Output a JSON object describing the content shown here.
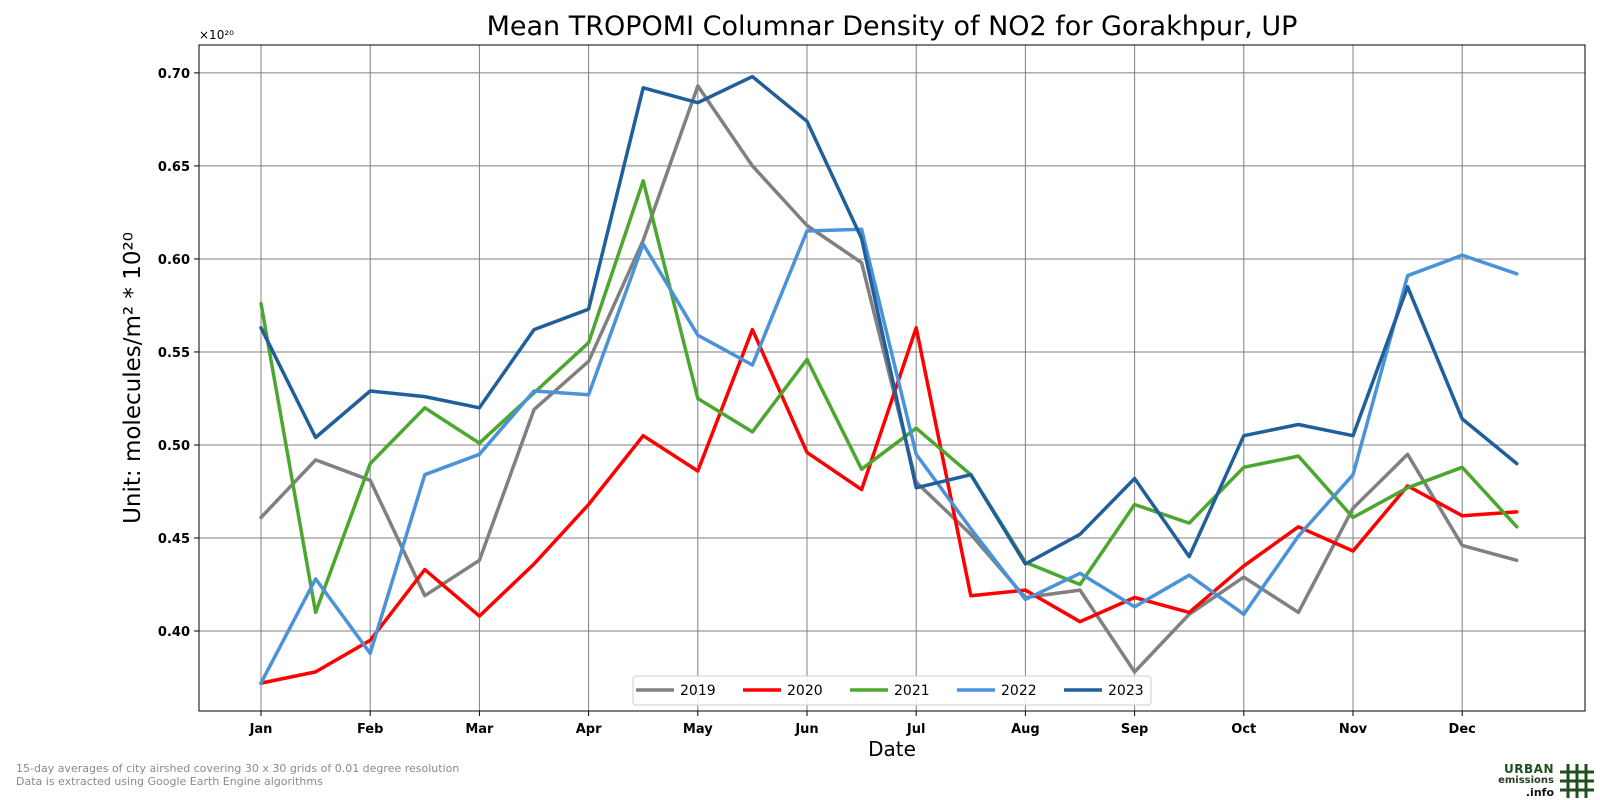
{
  "chart_data": {
    "type": "line",
    "title": "Mean TROPOMI Columnar Density of NO2 for Gorakhpur, UP",
    "xlabel": "Date",
    "ylabel": "Unit: molecules/m² * 10²⁰",
    "y_multiplier": "×10²⁰",
    "ylim": [
      0.357,
      0.715
    ],
    "y_ticks": [
      0.4,
      0.45,
      0.5,
      0.55,
      0.6,
      0.65,
      0.7
    ],
    "x_tick_labels": [
      "Jan",
      "Feb",
      "Mar",
      "Apr",
      "May",
      "Jun",
      "Jul",
      "Aug",
      "Sep",
      "Oct",
      "Nov",
      "Dec"
    ],
    "x": [
      "Jan 1",
      "Jan 16",
      "Feb 1",
      "Feb 16",
      "Mar 1",
      "Mar 16",
      "Apr 1",
      "Apr 16",
      "May 1",
      "May 16",
      "Jun 1",
      "Jun 16",
      "Jul 1",
      "Jul 16",
      "Aug 1",
      "Aug 16",
      "Sep 1",
      "Sep 16",
      "Oct 1",
      "Oct 16",
      "Nov 1",
      "Nov 16",
      "Dec 1",
      "Dec 16"
    ],
    "grid": true,
    "legend_position": "bottom-center",
    "series": [
      {
        "name": "2019",
        "color": "#808080",
        "values": [
          0.461,
          0.492,
          0.481,
          0.419,
          0.438,
          0.519,
          0.545,
          0.61,
          0.693,
          0.65,
          0.618,
          0.598,
          0.48,
          0.452,
          0.418,
          0.422,
          0.378,
          0.409,
          0.429,
          0.41,
          0.466,
          0.495,
          0.446,
          0.438
        ]
      },
      {
        "name": "2020",
        "color": "#ff0000",
        "values": [
          0.372,
          0.378,
          0.395,
          0.433,
          0.408,
          0.436,
          0.468,
          0.505,
          0.486,
          0.562,
          0.496,
          0.476,
          0.563,
          0.419,
          0.422,
          0.405,
          0.418,
          0.41,
          0.435,
          0.456,
          0.443,
          0.478,
          0.462,
          0.464
        ]
      },
      {
        "name": "2021",
        "color": "#4ca72e",
        "values": [
          0.576,
          0.41,
          0.49,
          0.52,
          0.501,
          0.528,
          0.555,
          0.642,
          0.525,
          0.507,
          0.546,
          0.487,
          0.509,
          0.484,
          0.437,
          0.425,
          0.468,
          0.458,
          0.488,
          0.494,
          0.461,
          0.477,
          0.488,
          0.456
        ]
      },
      {
        "name": "2022",
        "color": "#4b93d8",
        "values": [
          0.372,
          0.428,
          0.388,
          0.484,
          0.495,
          0.529,
          0.527,
          0.608,
          0.559,
          0.543,
          0.615,
          0.616,
          0.495,
          0.455,
          0.417,
          0.431,
          0.413,
          0.43,
          0.409,
          0.451,
          0.484,
          0.591,
          0.602,
          0.592
        ]
      },
      {
        "name": "2023",
        "color": "#215f9a",
        "values": [
          0.563,
          0.504,
          0.529,
          0.526,
          0.52,
          0.562,
          0.573,
          0.692,
          0.684,
          0.698,
          0.674,
          0.611,
          0.477,
          0.484,
          0.436,
          0.452,
          0.482,
          0.44,
          0.505,
          0.511,
          0.505,
          0.585,
          0.514,
          0.49
        ]
      }
    ]
  },
  "footnote": {
    "line1": "15-day averages of city airshed covering 30 x 30 grids of 0.01 degree resolution",
    "line2": "Data is extracted using Google Earth Engine algorithms"
  },
  "logo": {
    "line1": "URBAN",
    "line2": "emissions",
    "line3": ".info",
    "color": "#1f4e1f"
  }
}
